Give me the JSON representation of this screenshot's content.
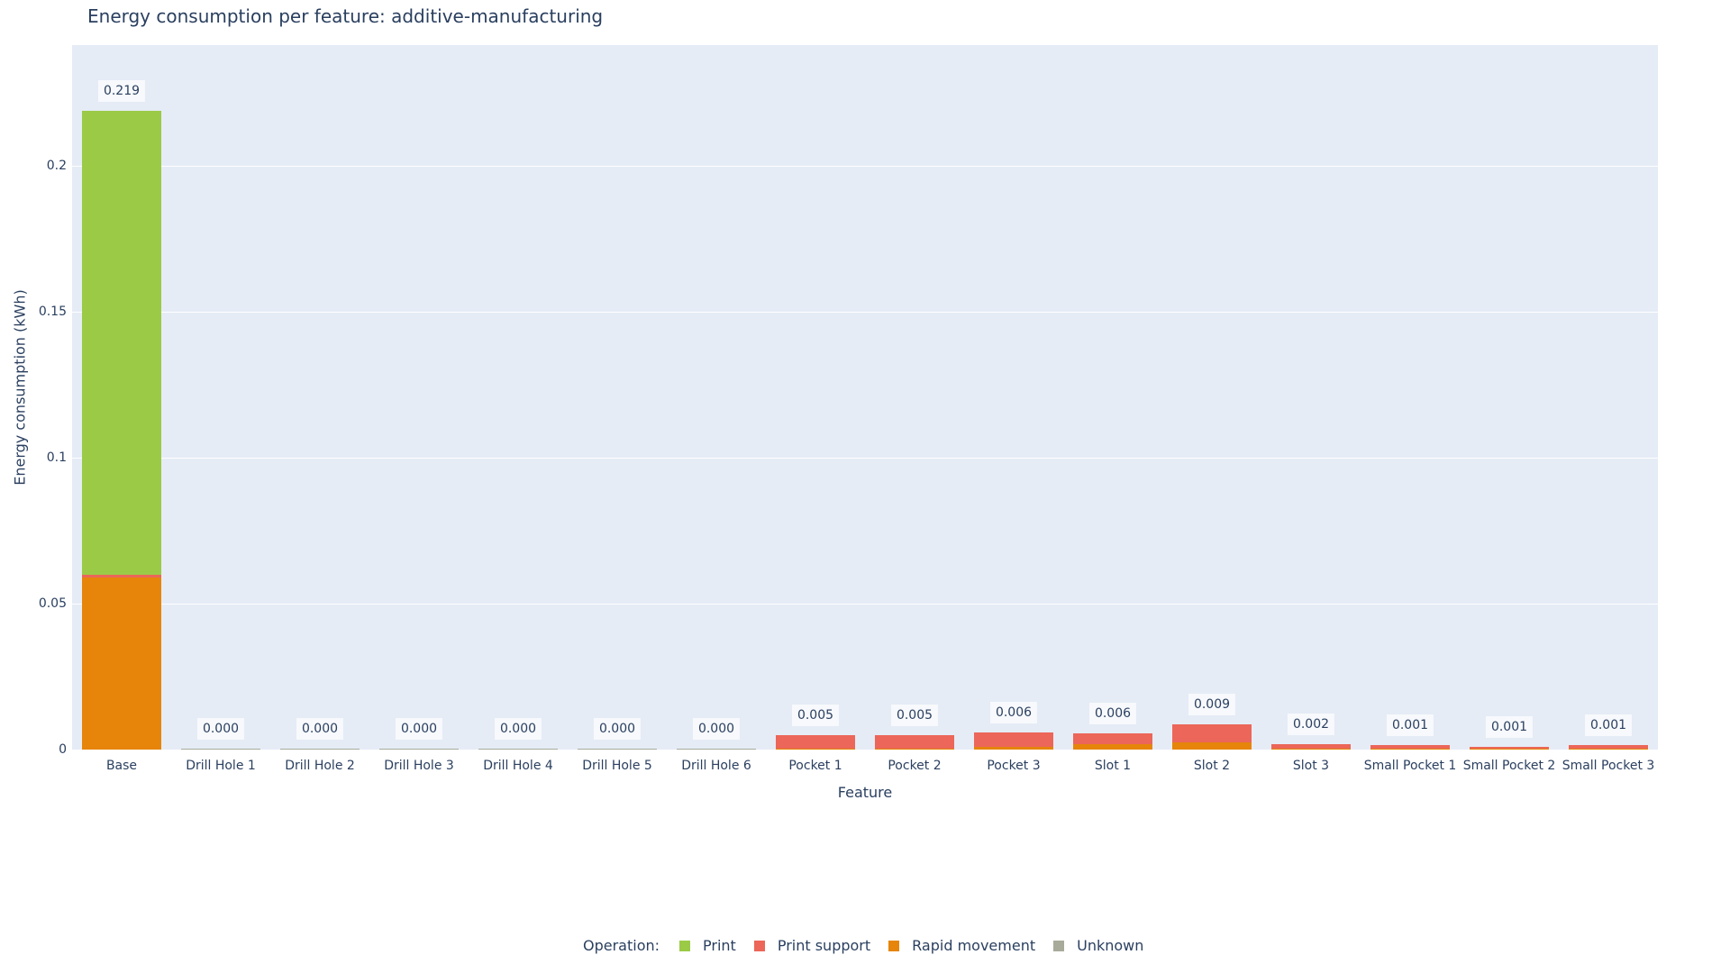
{
  "chart_data": {
    "type": "bar",
    "stacked": true,
    "title": "Energy consumption per feature: additive-manufacturing",
    "xlabel": "Feature",
    "ylabel": "Energy consumption (kWh)",
    "ylim": [
      0,
      0.2414
    ],
    "yticks": [
      0,
      0.05,
      0.1,
      0.15,
      0.2
    ],
    "ytick_labels": [
      "0",
      "0.05",
      "0.1",
      "0.15",
      "0.2"
    ],
    "grid": true,
    "legend_title": "Operation:",
    "legend_position": "bottom",
    "categories": [
      "Base",
      "Drill Hole 1",
      "Drill Hole 2",
      "Drill Hole 3",
      "Drill Hole 4",
      "Drill Hole 5",
      "Drill Hole 6",
      "Pocket 1",
      "Pocket 2",
      "Pocket 3",
      "Slot 1",
      "Slot 2",
      "Slot 3",
      "Small Pocket 1",
      "Small Pocket 2",
      "Small Pocket 3"
    ],
    "series": [
      {
        "name": "Rapid movement",
        "color": "#e6850a",
        "values": [
          0.0589,
          0,
          0,
          0,
          0,
          0,
          0,
          0.0003,
          0.0003,
          0.0009,
          0.0018,
          0.0025,
          0.0003,
          0.0001,
          0.0001,
          0.0002
        ]
      },
      {
        "name": "Print support",
        "color": "#ec6659",
        "values": [
          0.001,
          0,
          0,
          0,
          0,
          0,
          0,
          0.0047,
          0.0047,
          0.0051,
          0.0039,
          0.0061,
          0.0017,
          0.0011,
          0.0007,
          0.0012
        ]
      },
      {
        "name": "Print",
        "color": "#9bca47",
        "values": [
          0.1591,
          0,
          0,
          0,
          0,
          0,
          0,
          0,
          0,
          0,
          0,
          0,
          0,
          0,
          0,
          0
        ]
      },
      {
        "name": "Unknown",
        "color": "#a8ab9a",
        "values": [
          0,
          0.0002,
          0.0002,
          0.0002,
          0.0002,
          0.0002,
          0.0002,
          0,
          0,
          0,
          0,
          0,
          0,
          0,
          0,
          0
        ]
      }
    ],
    "totals_labels": [
      "0.219",
      "0.000",
      "0.000",
      "0.000",
      "0.000",
      "0.000",
      "0.000",
      "0.005",
      "0.005",
      "0.006",
      "0.006",
      "0.009",
      "0.002",
      "0.001",
      "0.001",
      "0.001"
    ]
  }
}
